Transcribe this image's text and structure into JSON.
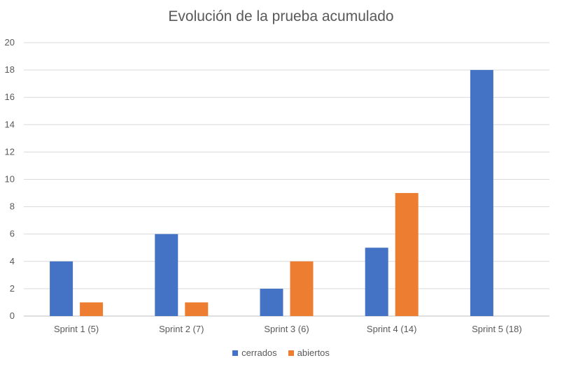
{
  "chart_data": {
    "type": "bar",
    "title": "Evolución de la prueba acumulado",
    "categories": [
      "Sprint 1 (5)",
      "Sprint 2 (7)",
      "Sprint 3 (6)",
      "Sprint 4 (14)",
      "Sprint 5 (18)"
    ],
    "series": [
      {
        "name": "cerrados",
        "color": "#4472C4",
        "values": [
          4,
          6,
          2,
          5,
          18
        ]
      },
      {
        "name": "abiertos",
        "color": "#ED7D31",
        "values": [
          1,
          1,
          4,
          9,
          0
        ]
      }
    ],
    "ylim": [
      0,
      20
    ],
    "yticks": [
      0,
      2,
      4,
      6,
      8,
      10,
      12,
      14,
      16,
      18,
      20
    ],
    "grid": true,
    "legend_position": "bottom"
  }
}
